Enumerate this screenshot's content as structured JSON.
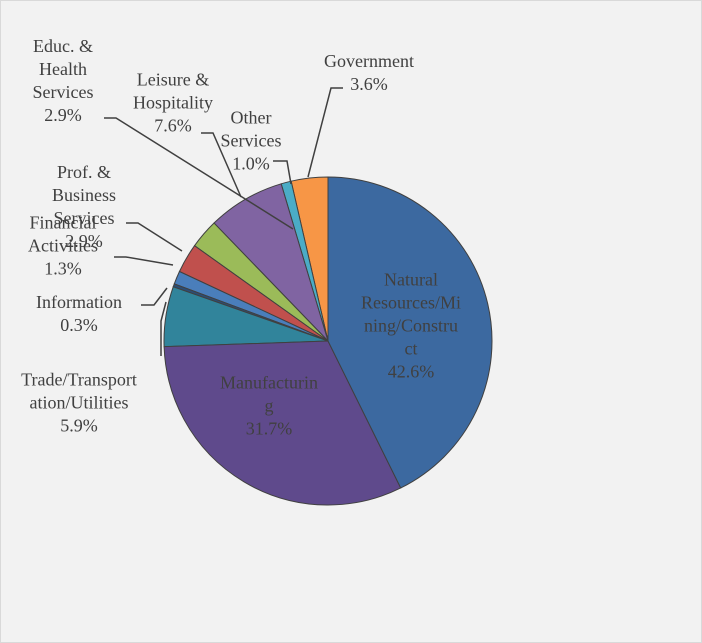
{
  "chart_data": {
    "type": "pie",
    "categories": [
      "Natural Resources/Mining/Construct",
      "Manufacturing",
      "Trade/Transportation/Utilities",
      "Information",
      "Financial Activities",
      "Prof. & Business Services",
      "Educ. & Health Services",
      "Leisure & Hospitality",
      "Other Services",
      "Government"
    ],
    "values": [
      42.6,
      31.7,
      5.9,
      0.3,
      1.3,
      2.9,
      2.9,
      7.6,
      1.0,
      3.6
    ],
    "value_labels": [
      "42.6%",
      "31.7%",
      "5.9%",
      "0.3%",
      "1.3%",
      "2.9%",
      "2.9%",
      "7.6%",
      "1.0%",
      "3.6%"
    ],
    "colors": [
      "#3c69a0",
      "#5f4a8c",
      "#31849b",
      "#2c4d75",
      "#4a7ebb",
      "#c0504d",
      "#9bbb59",
      "#8064a2",
      "#4bacc6",
      "#f79646"
    ]
  }
}
